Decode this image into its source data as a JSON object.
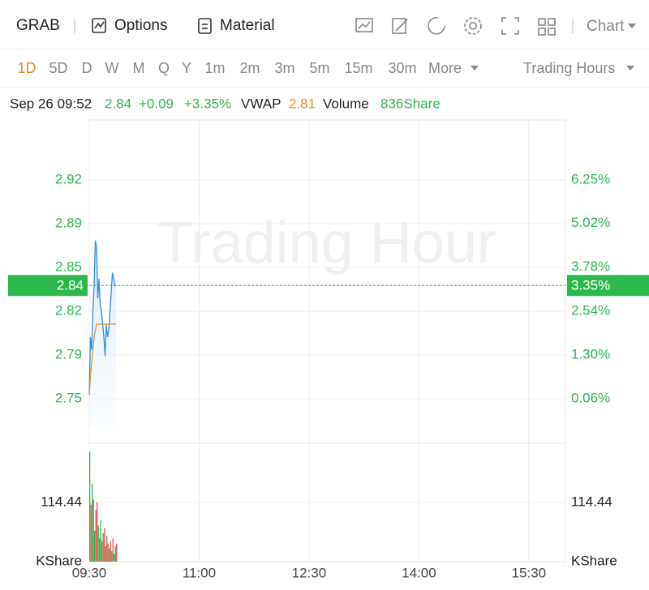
{
  "toolbar": {
    "symbol": "GRAB",
    "buttons": [
      "Options",
      "Material"
    ],
    "chart_menu": "Chart"
  },
  "periods": {
    "items": [
      "1D",
      "5D",
      "D",
      "W",
      "M",
      "Q",
      "Y",
      "1m",
      "2m",
      "3m",
      "5m",
      "15m",
      "30m"
    ],
    "more": "More",
    "session": "Trading Hours"
  },
  "quote": {
    "time": "Sep 26 09:52",
    "price": "2.84",
    "change": "+0.09",
    "change_pct": "+3.35%",
    "vwap_label": "VWAP",
    "vwap": "2.81",
    "volume_label": "Volume",
    "volume": "836Share"
  },
  "chart_data": {
    "type": "line",
    "watermark": "Trading Hour",
    "x": [
      0,
      1,
      2,
      3,
      4,
      5,
      6,
      7,
      8,
      9,
      10,
      11,
      12,
      13,
      14,
      15,
      16,
      17,
      18,
      19,
      20,
      21,
      22
    ],
    "xlim": [
      0,
      390
    ],
    "xticks": [
      {
        "value": 0,
        "label": "09:30"
      },
      {
        "value": 90,
        "label": "11:00"
      },
      {
        "value": 180,
        "label": "12:30"
      },
      {
        "value": 270,
        "label": "14:00"
      },
      {
        "value": 360,
        "label": "15:30"
      }
    ],
    "ylim": [
      2.7174,
      2.9686
    ],
    "yticks": [
      {
        "value": 2.752,
        "label": "2.75"
      },
      {
        "value": 2.786,
        "label": "2.79"
      },
      {
        "value": 2.82,
        "label": "2.82"
      },
      {
        "value": 2.854,
        "label": "2.85"
      },
      {
        "value": 2.888,
        "label": "2.89"
      },
      {
        "value": 2.922,
        "label": "2.92"
      }
    ],
    "y2lim": [
      -1.201,
      7.947
    ],
    "y2ticks": [
      {
        "value": 0.06,
        "label": "0.06%"
      },
      {
        "value": 1.3,
        "label": "1.30%"
      },
      {
        "value": 2.54,
        "label": "2.54%"
      },
      {
        "value": 3.78,
        "label": "3.78%"
      },
      {
        "value": 5.02,
        "label": "5.02%"
      },
      {
        "value": 6.25,
        "label": "6.25%"
      }
    ],
    "series": [
      {
        "color": "#2f8de4",
        "values": [
          2.755,
          2.8,
          2.79,
          2.82,
          2.84,
          2.875,
          2.87,
          2.83,
          2.845,
          2.825,
          2.82,
          2.81,
          2.8,
          2.785,
          2.81,
          2.8,
          2.805,
          2.82,
          2.835,
          2.85,
          2.845,
          2.84,
          2.84
        ]
      },
      {
        "color": "#f08a24",
        "values": [
          2.755,
          2.77,
          2.78,
          2.79,
          2.8,
          2.805,
          2.81,
          2.81,
          2.81,
          2.81,
          2.81,
          2.81,
          2.81,
          2.81,
          2.81,
          2.81,
          2.81,
          2.81,
          2.81,
          2.81,
          2.81,
          2.81,
          2.81
        ]
      }
    ],
    "last_price": 2.84,
    "last_change": {
      "value": 3.35,
      "label": "3.35%"
    },
    "volume": {
      "values": [
        213,
        110,
        150,
        120,
        60,
        100,
        115,
        70,
        45,
        80,
        40,
        55,
        65,
        30,
        50,
        35,
        25,
        40,
        20,
        45,
        15,
        30,
        35
      ],
      "colors": [
        "#2db84d",
        "#e0534a",
        "#2db84d",
        "#e0534a",
        "#2db84d",
        "#e0534a",
        "#e0534a",
        "#2db84d",
        "#e0534a",
        "#2db84d",
        "#e0534a",
        "#2db84d",
        "#e0534a",
        "#2db84d",
        "#e0534a",
        "#e0534a",
        "#2db84d",
        "#e0534a",
        "#2db84d",
        "#e0534a",
        "#2db84d",
        "#2db84d",
        "#e0534a"
      ],
      "ylim": [
        0,
        228.88
      ],
      "yticks": [
        114.44
      ],
      "unit": "KShare"
    }
  }
}
